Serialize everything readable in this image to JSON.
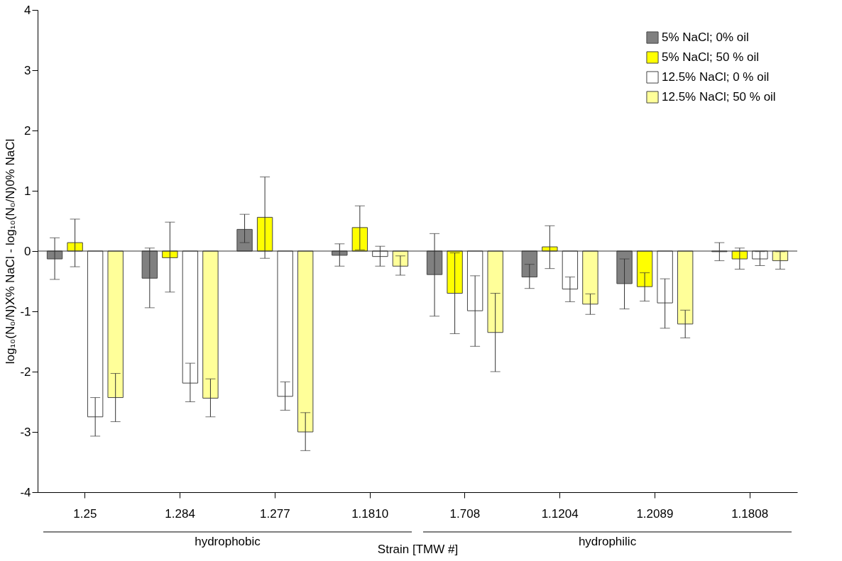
{
  "chart_data": {
    "type": "bar",
    "categories": [
      "1.25",
      "1.284",
      "1.277",
      "1.1810",
      "1.708",
      "1.1204",
      "1.2089",
      "1.1808"
    ],
    "xlabel": "Strain [TMW #]",
    "ylabel": "log₁₀(N₀/N)X% NaCl - log₁₀(N₀/N)0% NaCl",
    "ylim": [
      -4,
      4
    ],
    "yticks": [
      -4,
      -3,
      -2,
      -1,
      0,
      1,
      2,
      3,
      4
    ],
    "grid": false,
    "legend": "top right",
    "series": [
      {
        "name": "5% NaCl; 0% oil",
        "color": "#808080",
        "values": [
          -0.13,
          -0.45,
          0.36,
          -0.07,
          -0.39,
          -0.43,
          -0.54,
          -0.01
        ],
        "errors": [
          [
            -0.47,
            0.22
          ],
          [
            -0.94,
            0.05
          ],
          [
            0.14,
            0.61
          ],
          [
            -0.25,
            0.12
          ],
          [
            -1.08,
            0.29
          ],
          [
            -0.62,
            -0.22
          ],
          [
            -0.96,
            -0.13
          ],
          [
            -0.16,
            0.14
          ]
        ]
      },
      {
        "name": "5% NaCl; 50 % oil",
        "color": "#ffff00",
        "values": [
          0.14,
          -0.11,
          0.56,
          0.39,
          -0.7,
          0.07,
          -0.59,
          -0.13
        ],
        "errors": [
          [
            -0.26,
            0.53
          ],
          [
            -0.68,
            0.48
          ],
          [
            -0.12,
            1.23
          ],
          [
            0.02,
            0.75
          ],
          [
            -1.37,
            -0.03
          ],
          [
            -0.29,
            0.42
          ],
          [
            -0.83,
            -0.36
          ],
          [
            -0.3,
            0.05
          ]
        ]
      },
      {
        "name": "12.5% NaCl; 0 % oil",
        "color": "#ffffff",
        "values": [
          -2.75,
          -2.19,
          -2.41,
          -0.09,
          -0.99,
          -0.63,
          -0.86,
          -0.13
        ],
        "errors": [
          [
            -3.07,
            -2.43
          ],
          [
            -2.5,
            -1.86
          ],
          [
            -2.64,
            -2.17
          ],
          [
            -0.25,
            0.08
          ],
          [
            -1.58,
            -0.41
          ],
          [
            -0.84,
            -0.43
          ],
          [
            -1.28,
            -0.46
          ],
          [
            -0.24,
            -0.01
          ]
        ]
      },
      {
        "name": "12.5% NaCl; 50 % oil",
        "color": "#ffff99",
        "values": [
          -2.43,
          -2.44,
          -3.0,
          -0.25,
          -1.35,
          -0.88,
          -1.21,
          -0.16
        ],
        "errors": [
          [
            -2.83,
            -2.03
          ],
          [
            -2.75,
            -2.12
          ],
          [
            -3.31,
            -2.68
          ],
          [
            -0.4,
            -0.08
          ],
          [
            -2.0,
            -0.7
          ],
          [
            -1.05,
            -0.71
          ],
          [
            -1.44,
            -0.98
          ],
          [
            -0.3,
            -0.01
          ]
        ]
      }
    ],
    "ref_lines": [
      {
        "axis": "y",
        "value": 0,
        "label": null
      }
    ],
    "annotations": [
      "hydrophobic",
      "hydrophilic"
    ]
  }
}
